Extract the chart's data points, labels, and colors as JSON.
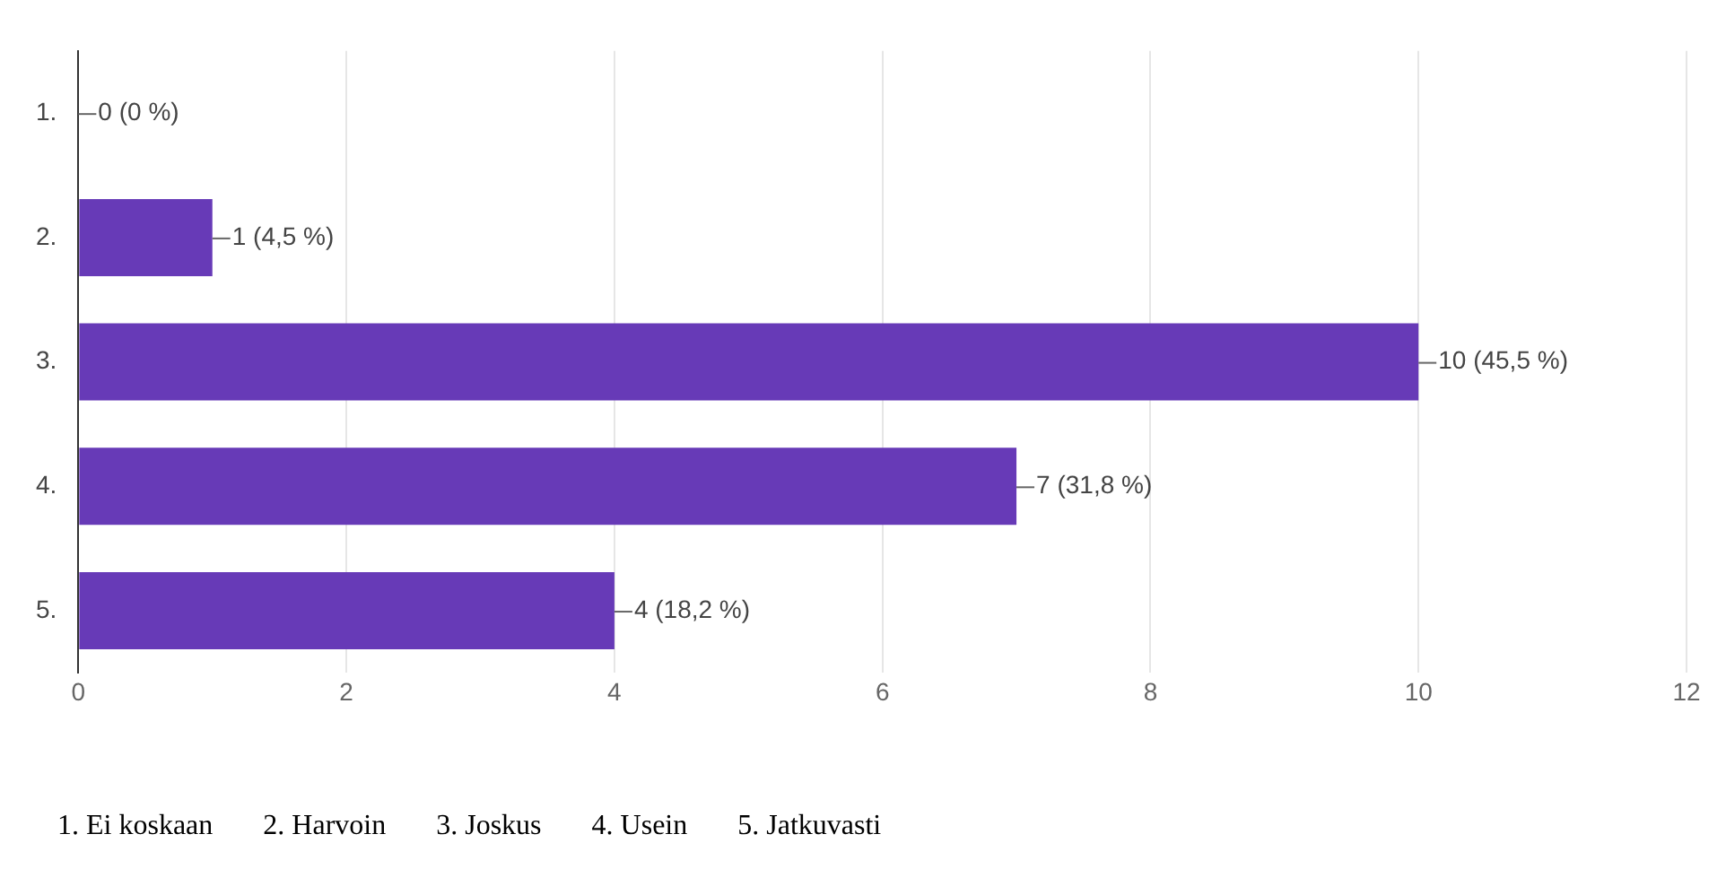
{
  "chart_data": {
    "type": "bar",
    "orientation": "horizontal",
    "categories": [
      "1.",
      "2.",
      "3.",
      "4.",
      "5."
    ],
    "values": [
      0,
      1,
      10,
      7,
      4
    ],
    "color": "#673ab7",
    "value_labels": [
      "0 (0 %)",
      "1 (4,5 %)",
      "10 (45,5 %)",
      "7 (31,8 %)",
      "4 (18,2 %)"
    ],
    "xlim": [
      0,
      12
    ],
    "xticks": [
      0,
      2,
      4,
      6,
      8,
      10,
      12
    ],
    "grid": "x",
    "legend": false,
    "annotations": [
      "1. Ei koskaan",
      "2. Harvoin",
      "3. Joskus",
      "4. Usein",
      "5. Jatkuvasti"
    ]
  }
}
